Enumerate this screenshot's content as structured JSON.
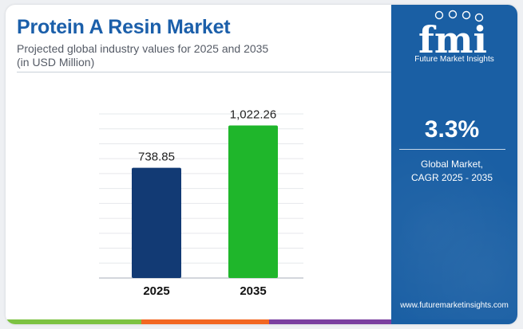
{
  "header": {
    "title": "Protein A Resin Market",
    "subtitle_line1": "Projected global industry values for 2025 and 2035",
    "subtitle_line2": "(in USD Million)"
  },
  "sidebar": {
    "logo_text": "fmi",
    "logo_caption": "Future Market Insights",
    "cagr_value": "3.3%",
    "cagr_label_line1": "Global Market,",
    "cagr_label_line2": "CAGR 2025 - 2035",
    "website": "www.futuremarketinsights.com"
  },
  "colors": {
    "title": "#1b5faa",
    "sidebar_bg": "#1a5fa4",
    "bar_2025": "#123a74",
    "bar_2035": "#1fb62b",
    "strip_green": "#7cc242",
    "strip_orange": "#f26722",
    "strip_purple": "#7b3fa0"
  },
  "chart_data": {
    "type": "bar",
    "categories": [
      "2025",
      "2035"
    ],
    "values": [
      738.85,
      1022.26
    ],
    "value_labels": [
      "738.85",
      "1,022.26"
    ],
    "ylim": [
      0,
      1100
    ],
    "grid": true,
    "legend": "none"
  }
}
